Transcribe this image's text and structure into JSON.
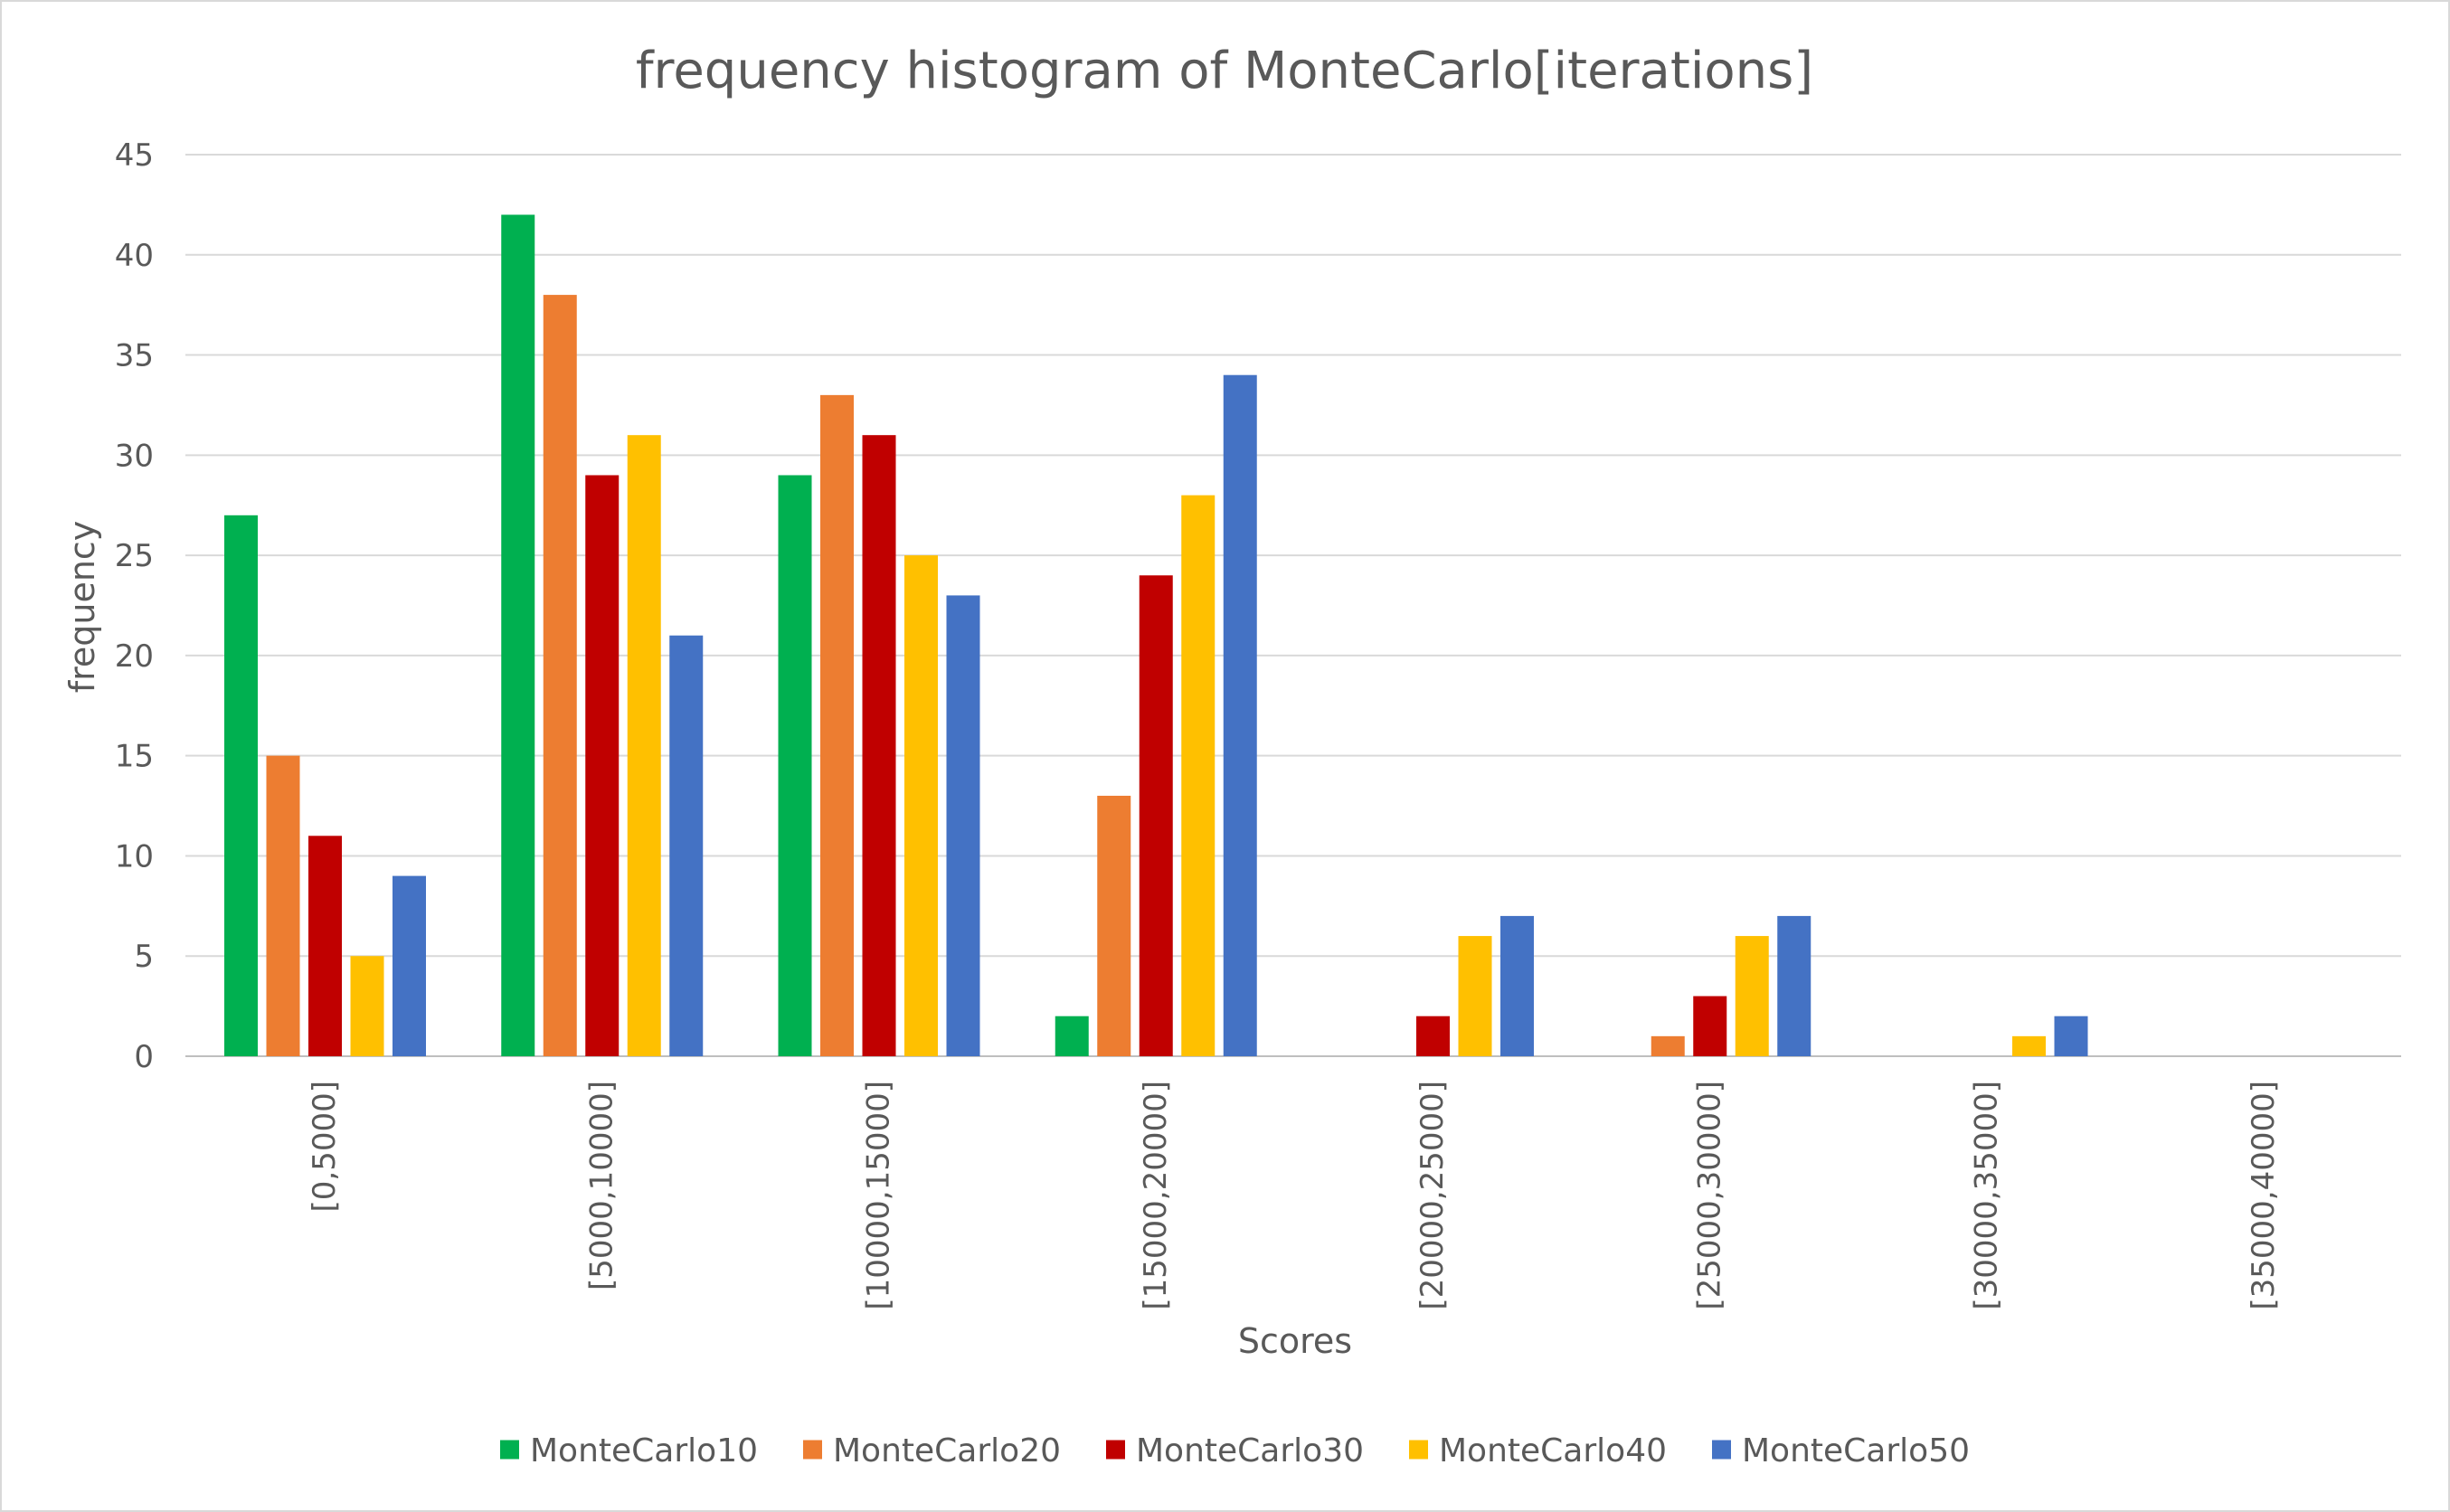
{
  "chart_data": {
    "type": "bar",
    "title": "frequency histogram of MonteCarlo[iterations]",
    "xlabel": "Scores",
    "ylabel": "frequency",
    "ylim": [
      0,
      45
    ],
    "yticks": [
      0,
      5,
      10,
      15,
      20,
      25,
      30,
      35,
      40,
      45
    ],
    "grid": true,
    "legend_position": "bottom",
    "categories": [
      "[0,5000]",
      "[5000,10000]",
      "[10000,15000]",
      "[15000,20000]",
      "[20000,25000]",
      "[25000,30000]",
      "[30000,35000]",
      "[35000,40000]"
    ],
    "series": [
      {
        "name": "MonteCarlo10",
        "color": "#00b050",
        "values": [
          27,
          42,
          29,
          2,
          0,
          0,
          0,
          0
        ]
      },
      {
        "name": "MonteCarlo20",
        "color": "#ed7d31",
        "values": [
          15,
          38,
          33,
          13,
          0,
          1,
          0,
          0
        ]
      },
      {
        "name": "MonteCarlo30",
        "color": "#c00000",
        "values": [
          11,
          29,
          31,
          24,
          2,
          3,
          0,
          0
        ]
      },
      {
        "name": "MonteCarlo40",
        "color": "#ffc000",
        "values": [
          5,
          31,
          25,
          28,
          6,
          6,
          1,
          0
        ]
      },
      {
        "name": "MonteCarlo50",
        "color": "#4472c4",
        "values": [
          9,
          21,
          23,
          34,
          7,
          7,
          2,
          0
        ]
      }
    ]
  }
}
